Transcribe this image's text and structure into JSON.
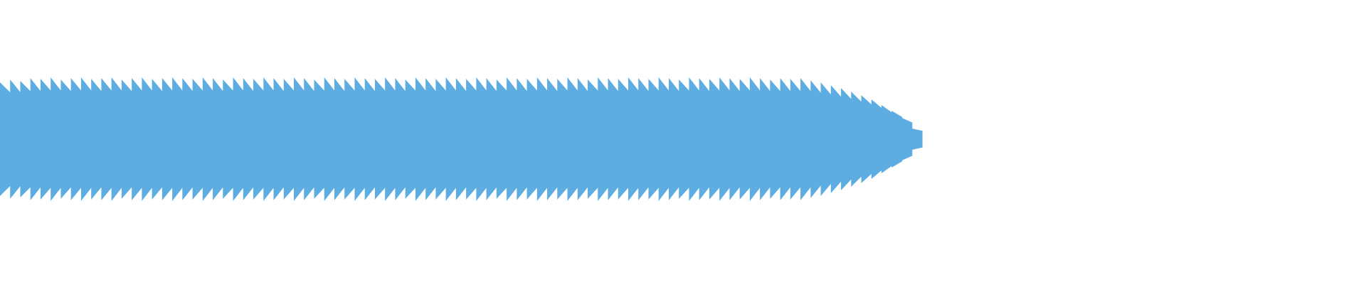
{
  "chart_data": {
    "type": "waveform",
    "color": "#5dade2",
    "ylim": [
      -1,
      1
    ],
    "values": [
      0.8,
      0.84,
      0.82,
      0.86,
      0.85,
      0.87,
      0.84,
      0.86,
      0.87,
      0.85,
      0.86,
      0.87,
      0.84,
      0.86,
      0.87,
      0.85,
      0.86,
      0.87,
      0.86,
      0.85,
      0.87,
      0.86,
      0.84,
      0.87,
      0.86,
      0.85,
      0.87,
      0.86,
      0.85,
      0.87,
      0.86,
      0.84,
      0.87,
      0.86,
      0.85,
      0.87,
      0.86,
      0.85,
      0.87,
      0.86,
      0.84,
      0.87,
      0.86,
      0.85,
      0.87,
      0.86,
      0.85,
      0.87,
      0.86,
      0.84,
      0.87,
      0.86,
      0.85,
      0.87,
      0.86,
      0.85,
      0.87,
      0.86,
      0.84,
      0.87,
      0.86,
      0.85,
      0.87,
      0.86,
      0.85,
      0.87,
      0.86,
      0.84,
      0.87,
      0.86,
      0.85,
      0.87,
      0.86,
      0.85,
      0.87,
      0.86,
      0.84,
      0.86,
      0.85,
      0.86,
      0.83,
      0.8,
      0.76,
      0.72,
      0.67,
      0.62,
      0.56,
      0.48,
      0.4,
      0.3,
      0.15
    ]
  }
}
